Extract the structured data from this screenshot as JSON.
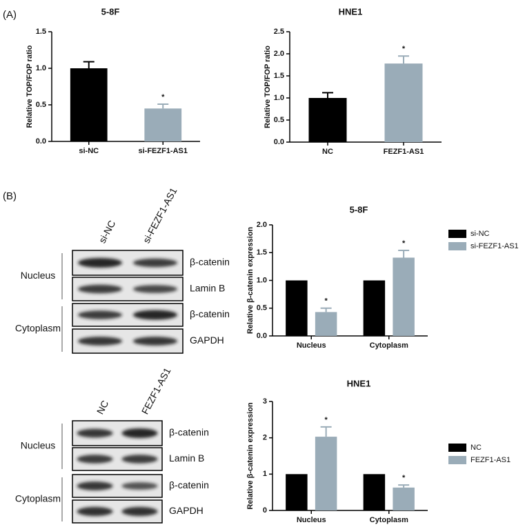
{
  "panel_labels": [
    "(A)",
    "(B)"
  ],
  "chart_data": [
    {
      "type": "bar",
      "title": "5-8F",
      "y_label": "Relative TOP/FOP ratio",
      "categories": [
        "si-NC",
        "si-FEZF1-AS1"
      ],
      "values": [
        1.0,
        0.45
      ],
      "errors": [
        0.09,
        0.06
      ],
      "colors": [
        "#000000",
        "#9aacb8"
      ],
      "annotations": [
        null,
        "*"
      ],
      "ylim": [
        0,
        1.5
      ],
      "yticks": [
        {
          "value": 0,
          "label": "0.0"
        },
        0.5,
        {
          "value": 1,
          "label": "1.0"
        },
        1.5
      ]
    },
    {
      "type": "bar",
      "title": "HNE1",
      "y_label": "Relative TOP/FOP ratio",
      "categories": [
        "NC",
        "FEZF1-AS1"
      ],
      "values": [
        1.0,
        1.78
      ],
      "errors": [
        0.12,
        0.17
      ],
      "colors": [
        "#000000",
        "#9aacb8"
      ],
      "annotations": [
        null,
        "*"
      ],
      "ylim": [
        0,
        2.5
      ],
      "yticks": [
        {
          "value": 0,
          "label": "0.0"
        },
        0.5,
        {
          "value": 1,
          "label": "1.0"
        },
        1.5,
        {
          "value": 2,
          "label": "2.0"
        },
        2.5
      ]
    },
    {
      "type": "grouped_bar",
      "title": "5-8F",
      "y_label": "Relative β-catenin expression",
      "categories": [
        "Nucleus",
        "Cytoplasm"
      ],
      "series": [
        {
          "name": "si-NC",
          "color": "#000000",
          "values": [
            1,
            1
          ]
        },
        {
          "name": "si-FEZF1-AS1",
          "color": "#9aacb8",
          "values": [
            0.43,
            1.41
          ],
          "errors": [
            0.07,
            0.13
          ],
          "annotations": [
            "*",
            "*"
          ]
        }
      ],
      "ylim": [
        0,
        2
      ],
      "yticks": [
        {
          "value": 0,
          "label": "0.0"
        },
        0.5,
        {
          "value": 1,
          "label": "1.0"
        },
        1.5,
        {
          "value": 2,
          "label": "2.0"
        }
      ],
      "legend": "right"
    },
    {
      "type": "grouped_bar",
      "title": "HNE1",
      "y_label": "Relative β-catenin expression",
      "categories": [
        "Nucleus",
        "Cytoplasm"
      ],
      "series": [
        {
          "name": "NC",
          "color": "#000000",
          "values": [
            1,
            1
          ]
        },
        {
          "name": "FEZF1-AS1",
          "color": "#9aacb8",
          "values": [
            2.03,
            0.63
          ],
          "errors": [
            0.27,
            0.07
          ],
          "annotations": [
            "*",
            "*"
          ]
        }
      ],
      "ylim": [
        0,
        3
      ],
      "yticks": [
        0,
        1,
        2,
        3
      ],
      "legend": "right"
    }
  ],
  "blots": [
    {
      "columns": [
        "si-NC",
        "si-FEZF1-AS1"
      ],
      "groups": [
        {
          "name": "Nucleus",
          "rows": [
            "β-catenin",
            "Lamin B"
          ]
        },
        {
          "name": "Cytoplasm",
          "rows": [
            "β-catenin",
            "GAPDH"
          ]
        }
      ]
    },
    {
      "columns": [
        "NC",
        "FEZF1-AS1"
      ],
      "groups": [
        {
          "name": "Nucleus",
          "rows": [
            "β-catenin",
            "Lamin B"
          ]
        },
        {
          "name": "Cytoplasm",
          "rows": [
            "β-catenin",
            "GAPDH"
          ]
        }
      ]
    }
  ]
}
